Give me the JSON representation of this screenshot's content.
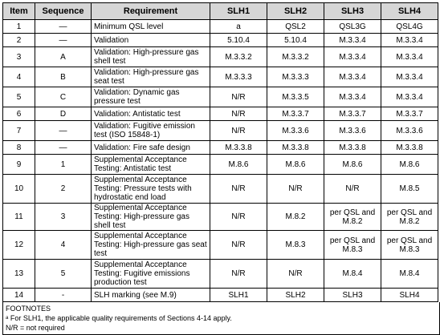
{
  "table": {
    "headers": [
      "Item",
      "Sequence",
      "Requirement",
      "SLH1",
      "SLH2",
      "SLH3",
      "SLH4"
    ],
    "rows": [
      {
        "item": "1",
        "sequence": "—",
        "requirement": "Minimum QSL level",
        "slh1": "a",
        "slh2": "QSL2",
        "slh3": "QSL3G",
        "slh4": "QSL4G"
      },
      {
        "item": "2",
        "sequence": "—",
        "requirement": "Validation",
        "slh1": "5.10.4",
        "slh2": "5.10.4",
        "slh3": "M.3.3.4",
        "slh4": "M.3.3.4"
      },
      {
        "item": "3",
        "sequence": "A",
        "requirement": "Validation: High-pressure gas shell test",
        "slh1": "M.3.3.2",
        "slh2": "M.3.3.2",
        "slh3": "M.3.3.4",
        "slh4": "M.3.3.4"
      },
      {
        "item": "4",
        "sequence": "B",
        "requirement": "Validation: High-pressure gas seat test",
        "slh1": "M.3.3.3",
        "slh2": "M.3.3.3",
        "slh3": "M.3.3.4",
        "slh4": "M.3.3.4"
      },
      {
        "item": "5",
        "sequence": "C",
        "requirement": "Validation: Dynamic gas pressure test",
        "slh1": "N/R",
        "slh2": "M.3.3.5",
        "slh3": "M.3.3.4",
        "slh4": "M.3.3.4"
      },
      {
        "item": "6",
        "sequence": "D",
        "requirement": "Validation: Antistatic test",
        "slh1": "N/R",
        "slh2": "M.3.3.7",
        "slh3": "M.3.3.7",
        "slh4": "M.3.3.7"
      },
      {
        "item": "7",
        "sequence": "—",
        "requirement": "Validation: Fugitive emission test (ISO 15848-1)",
        "slh1": "N/R",
        "slh2": "M.3.3.6",
        "slh3": "M.3.3.6",
        "slh4": "M.3.3.6"
      },
      {
        "item": "8",
        "sequence": "—",
        "requirement": "Validation: Fire safe design",
        "slh1": "M.3.3.8",
        "slh2": "M.3.3.8",
        "slh3": "M.3.3.8",
        "slh4": "M.3.3.8"
      },
      {
        "item": "9",
        "sequence": "1",
        "requirement": "Supplemental Acceptance Testing: Antistatic test",
        "slh1": "M.8.6",
        "slh2": "M.8.6",
        "slh3": "M.8.6",
        "slh4": "M.8.6"
      },
      {
        "item": "10",
        "sequence": "2",
        "requirement": "Supplemental Acceptance Testing: Pressure tests with hydrostatic end load",
        "slh1": "N/R",
        "slh2": "N/R",
        "slh3": "N/R",
        "slh4": "M.8.5"
      },
      {
        "item": "11",
        "sequence": "3",
        "requirement": "Supplemental Acceptance Testing: High-pressure gas shell test",
        "slh1": "N/R",
        "slh2": "M.8.2",
        "slh3": "per QSL and M.8.2",
        "slh4": "per QSL and M.8.2"
      },
      {
        "item": "12",
        "sequence": "4",
        "requirement": "Supplemental Acceptance Testing: High-pressure gas seat test",
        "slh1": "N/R",
        "slh2": "M.8.3",
        "slh3": "per QSL and M.8.3",
        "slh4": "per QSL and M.8.3"
      },
      {
        "item": "13",
        "sequence": "5",
        "requirement": "Supplemental Acceptance Testing: Fugitive emissions production test",
        "slh1": "N/R",
        "slh2": "N/R",
        "slh3": "M.8.4",
        "slh4": "M.8.4"
      },
      {
        "item": "14",
        "sequence": "-",
        "requirement": "SLH marking (see M.9)",
        "slh1": "SLH1",
        "slh2": "SLH2",
        "slh3": "SLH3",
        "slh4": "SLH4"
      }
    ]
  },
  "footnotes": {
    "title": "FOOTNOTES",
    "note_a": "ᵃ For SLH1, the applicable quality requirements of Sections 4-14 apply.",
    "note_nr": "N/R = not required"
  }
}
